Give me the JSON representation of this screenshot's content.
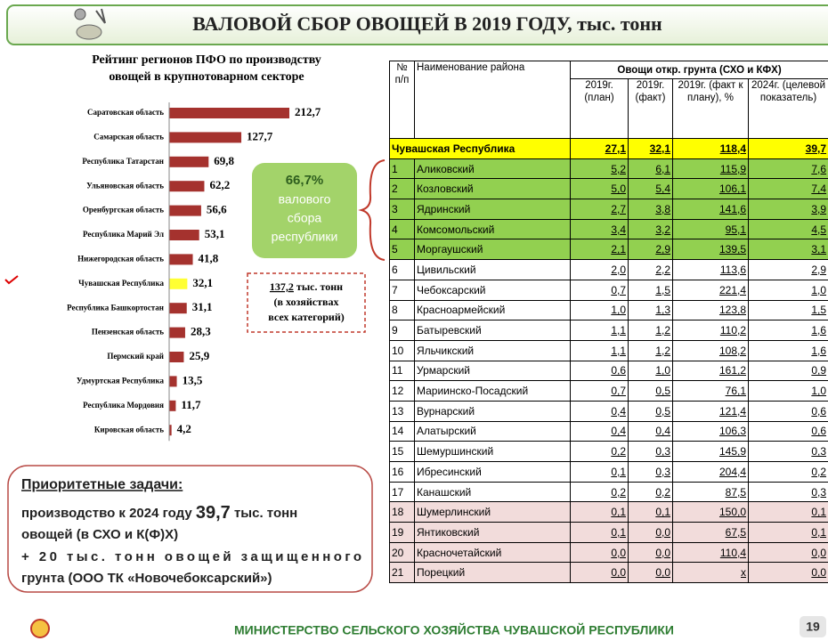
{
  "header": {
    "title": "ВАЛОВОЙ СБОР ОВОЩЕЙ В 2019 ГОДУ, тыс. тонн"
  },
  "chart_data": {
    "type": "bar",
    "orientation": "horizontal",
    "title_lines": [
      "Рейтинг регионов ПФО по производству",
      "овощей в крупнотоварном секторе"
    ],
    "categories": [
      "Саратовская область",
      "Самарская область",
      "Республика Татарстан",
      "Ульяновская область",
      "Оренбургская область",
      "Республика Марий Эл",
      "Нижегородская область",
      "Чувашская Республика",
      "Республика Башкортостан",
      "Пензенская область",
      "Пермский край",
      "Удмуртская Республика",
      "Республика Мордовия",
      "Кировская область"
    ],
    "values": [
      212.7,
      127.7,
      69.8,
      62.2,
      56.6,
      53.1,
      41.8,
      32.1,
      31.1,
      28.3,
      25.9,
      13.5,
      11.7,
      4.2
    ],
    "value_labels": [
      "212,7",
      "127,7",
      "69,8",
      "62,2",
      "56,6",
      "53,1",
      "41,8",
      "32,1",
      "31,1",
      "28,3",
      "25,9",
      "13,5",
      "11,7",
      "4,2"
    ],
    "colors": [
      "#a5322e",
      "#a5322e",
      "#a5322e",
      "#a5322e",
      "#a5322e",
      "#a5322e",
      "#a5322e",
      "#ffff33",
      "#a5322e",
      "#a5322e",
      "#a5322e",
      "#a5322e",
      "#a5322e",
      "#a5322e"
    ]
  },
  "callouts": {
    "share": {
      "value": "66,7%",
      "lines": [
        "валового",
        "сбора",
        "республики"
      ]
    },
    "total": {
      "value": "137,2",
      "unit": " тыс. тонн",
      "lines": [
        "(в хозяйствах",
        "всех категорий)"
      ]
    }
  },
  "priorities": {
    "title": "Приоритетные задачи:",
    "line1_start": "производство к 2024 году ",
    "line1_value": "39,7",
    "line1_end": " тыс. тонн",
    "line2": "овощей (в СХО и К(Ф)Х)",
    "line3": "+ 20 тыс. тонн овощей защищенного",
    "line4": "грунта (ООО ТК «Новочебоксарский»)"
  },
  "table": {
    "header": {
      "num": "№ п/п",
      "name": "Наименование района",
      "group": "Овощи откр. грунта (СХО и КФХ)",
      "cols": [
        "2019г. (план)",
        "2019г. (факт)",
        "2019г. (факт к плану), %",
        "2024г. (целевой показатель)"
      ]
    },
    "total": [
      "Чувашская Республика",
      "27,1",
      "32,1",
      "118,4",
      "39,7"
    ],
    "rows": [
      [
        "1",
        "Аликовский",
        "5,2",
        "6,1",
        "115,9",
        "7,6"
      ],
      [
        "2",
        "Козловский",
        "5,0",
        "5,4",
        "106,1",
        "7,4"
      ],
      [
        "3",
        "Ядринский",
        "2,7",
        "3,8",
        "141,6",
        "3,9"
      ],
      [
        "4",
        "Комсомольский",
        "3,4",
        "3,2",
        "95,1",
        "4,5"
      ],
      [
        "5",
        "Моргаушский",
        "2,1",
        "2,9",
        "139,5",
        "3,1"
      ],
      [
        "6",
        "Цивильский",
        "2,0",
        "2,2",
        "113,6",
        "2,9"
      ],
      [
        "7",
        "Чебоксарский",
        "0,7",
        "1,5",
        "221,4",
        "1,0"
      ],
      [
        "8",
        "Красноармейский",
        "1,0",
        "1,3",
        "123,8",
        "1,5"
      ],
      [
        "9",
        "Батыревский",
        "1,1",
        "1,2",
        "110,2",
        "1,6"
      ],
      [
        "10",
        "Яльчикский",
        "1,1",
        "1,2",
        "108,2",
        "1,6"
      ],
      [
        "11",
        "Урмарский",
        "0,6",
        "1,0",
        "161,2",
        "0,9"
      ],
      [
        "12",
        "Мариинско-Посадский",
        "0,7",
        "0,5",
        "76,1",
        "1,0"
      ],
      [
        "13",
        "Вурнарский",
        "0,4",
        "0,5",
        "121,4",
        "0,6"
      ],
      [
        "14",
        "Алатырский",
        "0,4",
        "0,4",
        "106,3",
        "0,6"
      ],
      [
        "15",
        "Шемуршинский",
        "0,2",
        "0,3",
        "145,9",
        "0,3"
      ],
      [
        "16",
        "Ибресинский",
        "0,1",
        "0,3",
        "204,4",
        "0,2"
      ],
      [
        "17",
        "Канашский",
        "0,2",
        "0,2",
        "87,5",
        "0,3"
      ],
      [
        "18",
        "Шумерлинский",
        "0,1",
        "0,1",
        "150,0",
        "0,1"
      ],
      [
        "19",
        "Янтиковский",
        "0,1",
        "0,0",
        "67,5",
        "0,1"
      ],
      [
        "20",
        "Красночетайский",
        "0,0",
        "0,0",
        "110,4",
        "0,0"
      ],
      [
        "21",
        "Порецкий",
        "0,0",
        "0,0",
        "x",
        "0,0"
      ]
    ]
  },
  "footer": {
    "ministry": "МИНИСТЕРСТВО СЕЛЬСКОГО ХОЗЯЙСТВА ЧУВАШСКОЙ РЕСПУБЛИКИ",
    "page": "19"
  }
}
